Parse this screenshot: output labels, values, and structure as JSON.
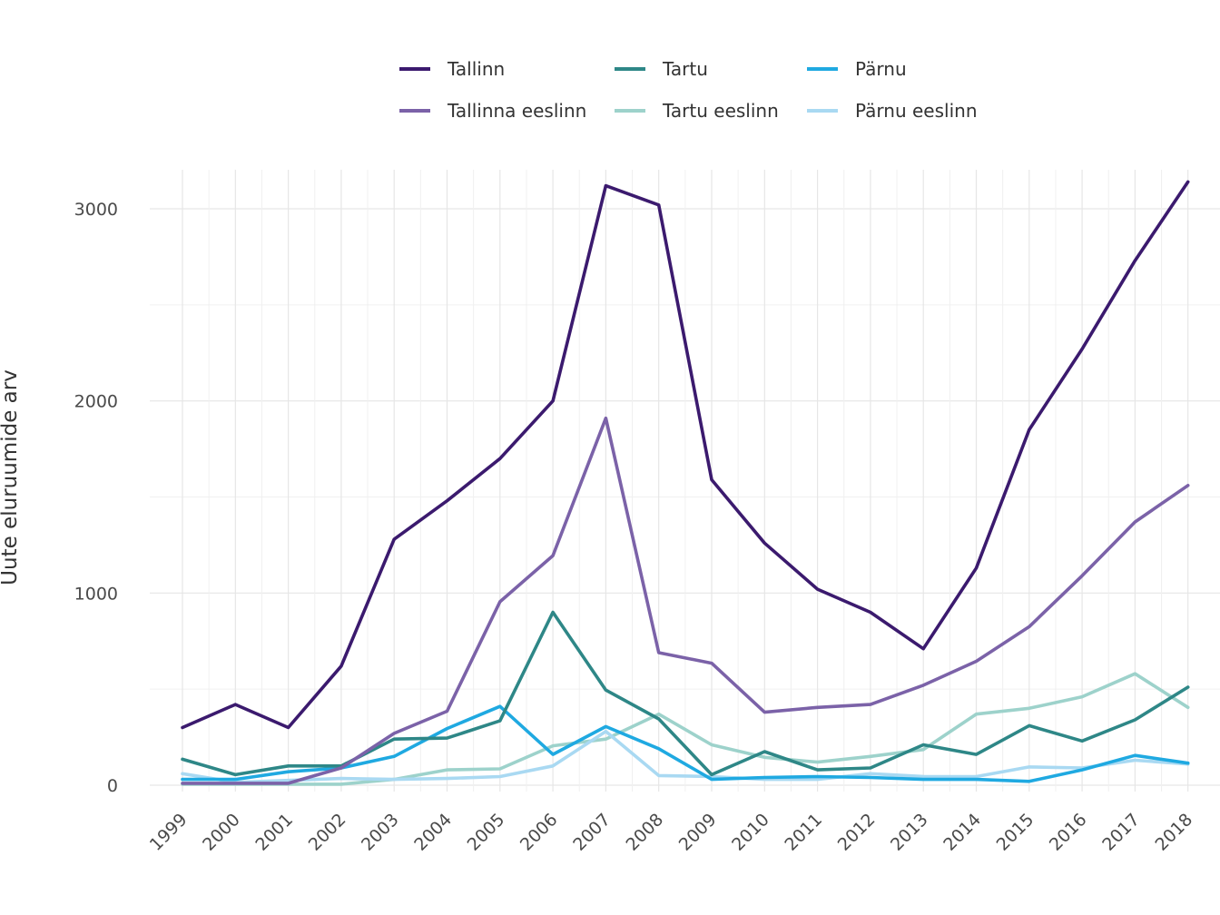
{
  "chart_data": {
    "type": "line",
    "title": "",
    "xlabel": "",
    "ylabel": "Uute eluruumide arv",
    "x": [
      "1999",
      "2000",
      "2001",
      "2002",
      "2003",
      "2004",
      "2005",
      "2006",
      "2007",
      "2008",
      "2009",
      "2010",
      "2011",
      "2012",
      "2013",
      "2014",
      "2015",
      "2016",
      "2017",
      "2018"
    ],
    "ylim": [
      0,
      3200
    ],
    "yticks": [
      0,
      1000,
      2000,
      3000
    ],
    "ytick_labels": [
      "0",
      "1000",
      "2000",
      "3000"
    ],
    "grid": true,
    "legend_position": "top",
    "series": [
      {
        "name": "Tallinn",
        "color": "#3b1a6e",
        "values": [
          300,
          420,
          300,
          620,
          1280,
          1480,
          1700,
          2000,
          3120,
          3020,
          1590,
          1260,
          1020,
          900,
          710,
          1130,
          1850,
          2270,
          2730,
          3140
        ]
      },
      {
        "name": "Tartu",
        "color": "#2e8787",
        "values": [
          135,
          55,
          100,
          100,
          240,
          245,
          335,
          900,
          495,
          345,
          55,
          175,
          80,
          90,
          210,
          160,
          310,
          230,
          340,
          510
        ]
      },
      {
        "name": "Pärnu",
        "color": "#1fa9e1",
        "values": [
          30,
          30,
          70,
          90,
          150,
          295,
          410,
          160,
          305,
          190,
          30,
          40,
          45,
          40,
          30,
          30,
          20,
          80,
          155,
          115
        ]
      },
      {
        "name": "Tallinna eeslinn",
        "color": "#7b62a8",
        "values": [
          10,
          10,
          10,
          90,
          270,
          385,
          955,
          1195,
          1910,
          690,
          635,
          380,
          405,
          420,
          520,
          645,
          825,
          1090,
          1370,
          1560
        ]
      },
      {
        "name": "Tartu eeslinn",
        "color": "#9dd2cb",
        "values": [
          5,
          5,
          5,
          5,
          30,
          80,
          85,
          205,
          240,
          370,
          210,
          145,
          120,
          150,
          185,
          370,
          400,
          460,
          580,
          405
        ]
      },
      {
        "name": "Pärnu eeslinn",
        "color": "#a9d9f2",
        "values": [
          60,
          15,
          25,
          35,
          30,
          35,
          45,
          100,
          280,
          50,
          45,
          30,
          30,
          60,
          45,
          45,
          95,
          90,
          130,
          110
        ]
      }
    ]
  }
}
